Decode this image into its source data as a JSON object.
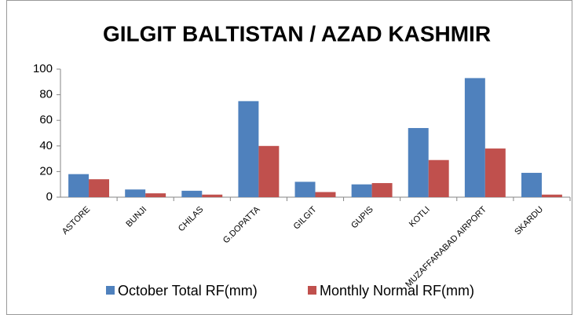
{
  "chart_data": {
    "type": "bar",
    "title": "GILGIT BALTISTAN / AZAD KASHMIR",
    "categories": [
      "ASTORE",
      "BUNJI",
      "CHILAS",
      "G.DOPATTA",
      "GILGIT",
      "GUPIS",
      "KOTLI",
      "MUZAFFARABAD AIRPORT",
      "SKARDU"
    ],
    "series": [
      {
        "name": "October Total RF(mm)",
        "color": "#4f81bd",
        "values": [
          18,
          6,
          5,
          75,
          12,
          10,
          54,
          93,
          19
        ]
      },
      {
        "name": "Monthly Normal RF(mm)",
        "color": "#c0504d",
        "values": [
          14,
          3,
          2,
          40,
          4,
          11,
          29,
          38,
          2
        ]
      }
    ],
    "ylim": [
      0,
      100
    ],
    "yticks": [
      0,
      20,
      40,
      60,
      80,
      100
    ],
    "grid": false,
    "legend": "bottom"
  }
}
